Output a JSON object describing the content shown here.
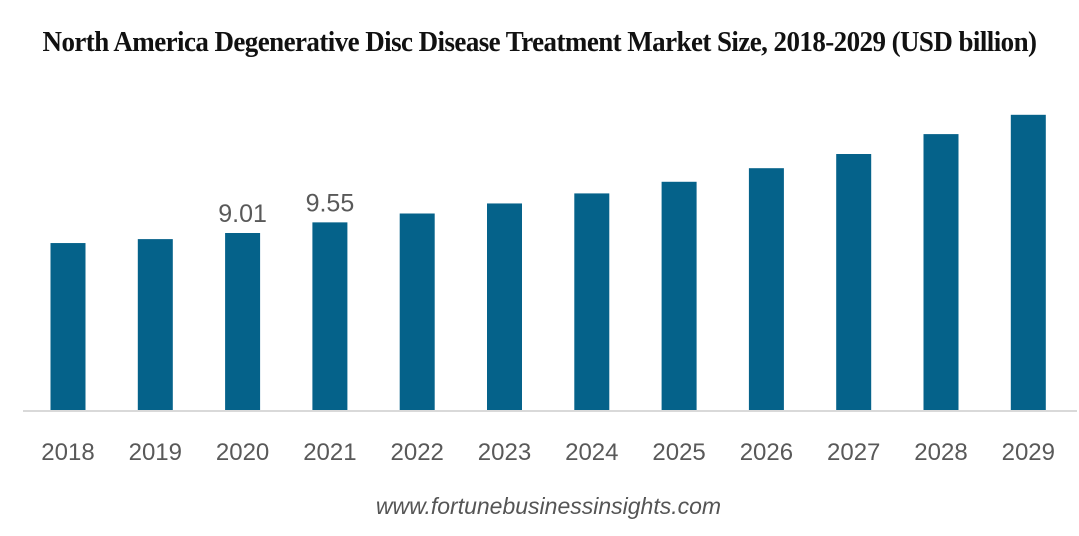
{
  "chart_data": {
    "type": "bar",
    "title": "North America Degenerative Disc Disease Treatment Market Size, 2018-2029 (USD billion)",
    "categories": [
      "2018",
      "2019",
      "2020",
      "2021",
      "2022",
      "2023",
      "2024",
      "2025",
      "2026",
      "2027",
      "2028",
      "2029"
    ],
    "values": [
      8.5,
      8.7,
      9.01,
      9.55,
      10.0,
      10.51,
      11.02,
      11.61,
      12.3,
      13.02,
      14.03,
      15.01
    ],
    "data_labels": {
      "2020": "9.01",
      "2021": "9.55"
    },
    "xlabel": "",
    "ylabel": "",
    "ylim": [
      0,
      15.5
    ],
    "grid": false,
    "bar_color": "#05628A",
    "axis_color": "#D9D9D9",
    "label_color": "#595959"
  },
  "footer": "www.fortunebusinessinsights.com"
}
